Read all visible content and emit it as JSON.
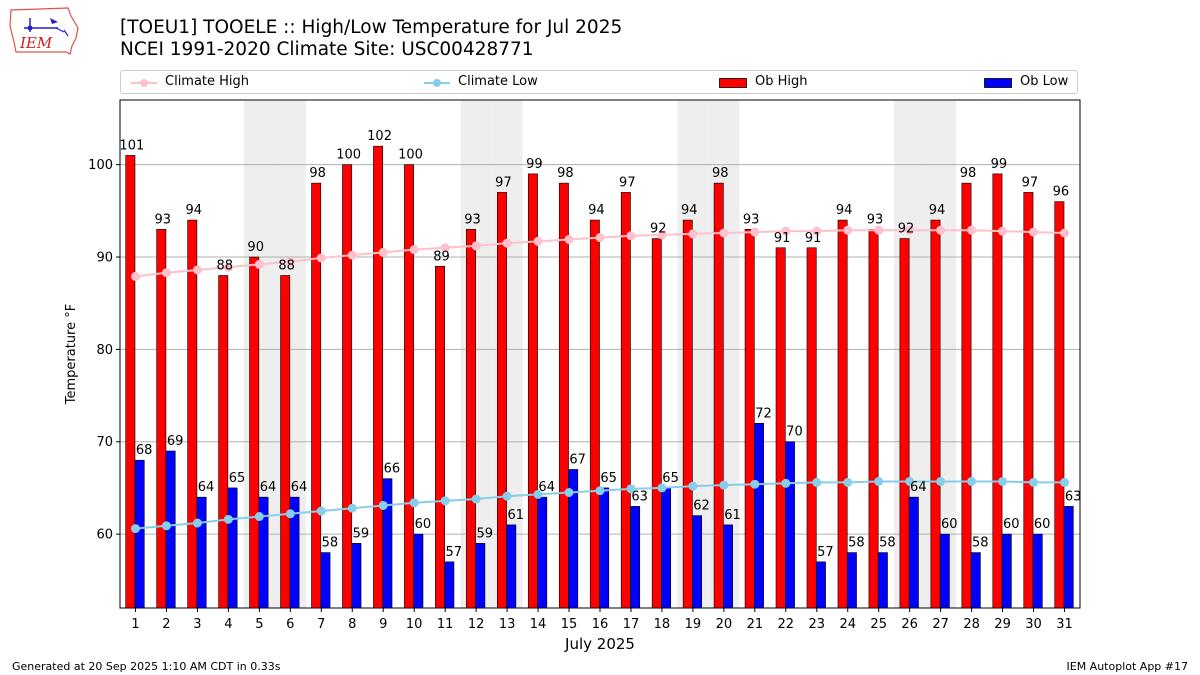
{
  "header": {
    "line1": "[TOEU1] TOOELE :: High/Low Temperature for Jul 2025",
    "line2": "NCEI 1991-2020 Climate Site: USC00428771",
    "logo_text": "IEM"
  },
  "legend": {
    "climate_high": "Climate High",
    "climate_low": "Climate Low",
    "ob_high": "Ob High",
    "ob_low": "Ob Low"
  },
  "footer": {
    "left": "Generated at 20 Sep 2025 1:10 AM CDT in 0.33s",
    "right": "IEM Autoplot App #17"
  },
  "colors": {
    "ob_high": "#ff0000",
    "ob_low": "#0000ff",
    "climate_high": "#ffc0cb",
    "climate_low": "#87ceeb",
    "weekend_shade": "#eeeeee"
  },
  "chart_data": {
    "type": "bar",
    "title": "[TOEU1] TOOELE :: High/Low Temperature for Jul 2025",
    "xlabel": "July 2025",
    "ylabel": "Temperature °F",
    "ylim": [
      52,
      107
    ],
    "yticks": [
      60,
      70,
      80,
      90,
      100
    ],
    "grid": "horizontal",
    "categories": [
      "1",
      "2",
      "3",
      "4",
      "5",
      "6",
      "7",
      "8",
      "9",
      "10",
      "11",
      "12",
      "13",
      "14",
      "15",
      "16",
      "17",
      "18",
      "19",
      "20",
      "21",
      "22",
      "23",
      "24",
      "25",
      "26",
      "27",
      "28",
      "29",
      "30",
      "31"
    ],
    "shaded_days": [
      5,
      6,
      12,
      13,
      19,
      20,
      26,
      27
    ],
    "series": [
      {
        "name": "Ob High",
        "kind": "bar",
        "values": [
          101,
          93,
          94,
          88,
          90,
          88,
          98,
          100,
          102,
          100,
          89,
          93,
          97,
          99,
          98,
          94,
          97,
          92,
          94,
          98,
          93,
          91,
          91,
          94,
          93,
          92,
          94,
          98,
          99,
          97,
          96
        ]
      },
      {
        "name": "Ob Low",
        "kind": "bar",
        "values": [
          68,
          69,
          64,
          65,
          64,
          64,
          58,
          59,
          66,
          60,
          57,
          59,
          61,
          64,
          67,
          65,
          63,
          65,
          62,
          61,
          72,
          70,
          57,
          58,
          58,
          64,
          60,
          58,
          60,
          60,
          63
        ]
      },
      {
        "name": "Climate High",
        "kind": "line",
        "values": [
          87.9,
          88.3,
          88.6,
          88.9,
          89.2,
          89.5,
          89.9,
          90.2,
          90.5,
          90.8,
          91.0,
          91.2,
          91.5,
          91.7,
          91.9,
          92.1,
          92.3,
          92.4,
          92.5,
          92.6,
          92.7,
          92.8,
          92.8,
          92.9,
          92.9,
          92.9,
          92.9,
          92.9,
          92.8,
          92.7,
          92.6
        ]
      },
      {
        "name": "Climate Low",
        "kind": "line",
        "values": [
          60.6,
          60.9,
          61.2,
          61.6,
          61.9,
          62.2,
          62.5,
          62.8,
          63.1,
          63.4,
          63.6,
          63.8,
          64.1,
          64.3,
          64.5,
          64.7,
          64.9,
          65.0,
          65.2,
          65.3,
          65.4,
          65.5,
          65.6,
          65.6,
          65.7,
          65.7,
          65.7,
          65.7,
          65.7,
          65.6,
          65.6
        ]
      }
    ]
  }
}
